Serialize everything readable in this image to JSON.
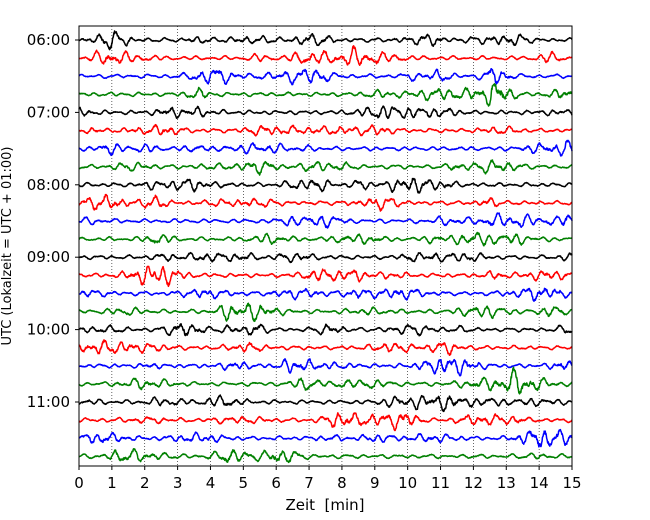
{
  "chart_data": {
    "type": "line",
    "title": "",
    "xlabel": "Zeit  [min]",
    "ylabel": "UTC (Lokalzeit = UTC + 01:00)",
    "xlim": [
      0,
      15
    ],
    "x_ticks": [
      "0",
      "1",
      "2",
      "3",
      "4",
      "5",
      "6",
      "7",
      "8",
      "9",
      "10",
      "11",
      "12",
      "13",
      "14",
      "15"
    ],
    "y_ticks": [
      "06:00",
      "07:00",
      "08:00",
      "09:00",
      "10:00",
      "11:00"
    ],
    "x_grid": true,
    "y_grid": false,
    "legend": false,
    "trace_count": 24,
    "trace_interval_min": 15,
    "trace_colors": [
      "#000000",
      "#ff0000",
      "#0000ff",
      "#008000"
    ]
  }
}
